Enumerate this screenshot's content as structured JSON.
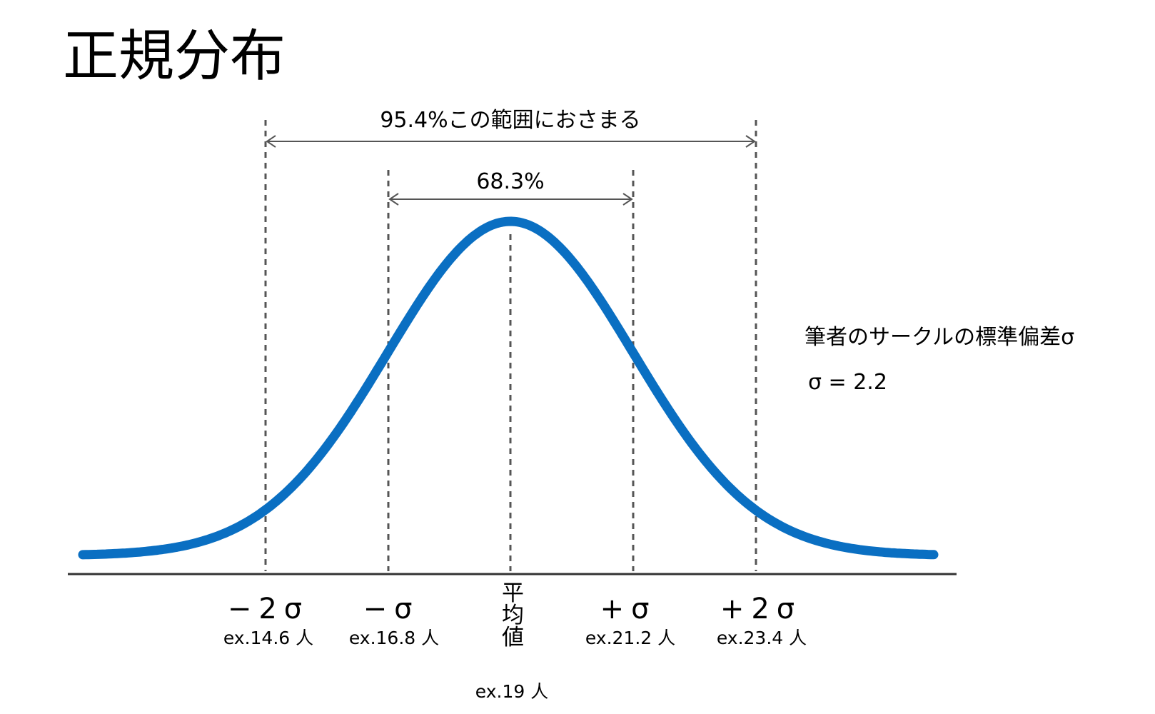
{
  "title": "正規分布",
  "ranges": {
    "outer_label": "95.4%この範囲におさまる",
    "inner_label": "68.3%"
  },
  "ticks": [
    {
      "id": "minus-2sigma",
      "label": "−2σ",
      "example": "ex.14.6 人"
    },
    {
      "id": "minus-sigma",
      "label": "−σ",
      "example": "ex.16.8 人"
    },
    {
      "id": "mean",
      "label": "平均値",
      "example": "ex.19 人"
    },
    {
      "id": "plus-sigma",
      "label": "+σ",
      "example": "ex.21.2 人"
    },
    {
      "id": "plus-2sigma",
      "label": "+2σ",
      "example": "ex.23.4 人"
    }
  ],
  "note": {
    "line1": "筆者のサークルの標準偏差σ",
    "line2": "σ = 2.2"
  },
  "colors": {
    "curve": "#0a6fc2",
    "axis": "#333333",
    "dashed": "#555555",
    "text": "#111111"
  }
}
